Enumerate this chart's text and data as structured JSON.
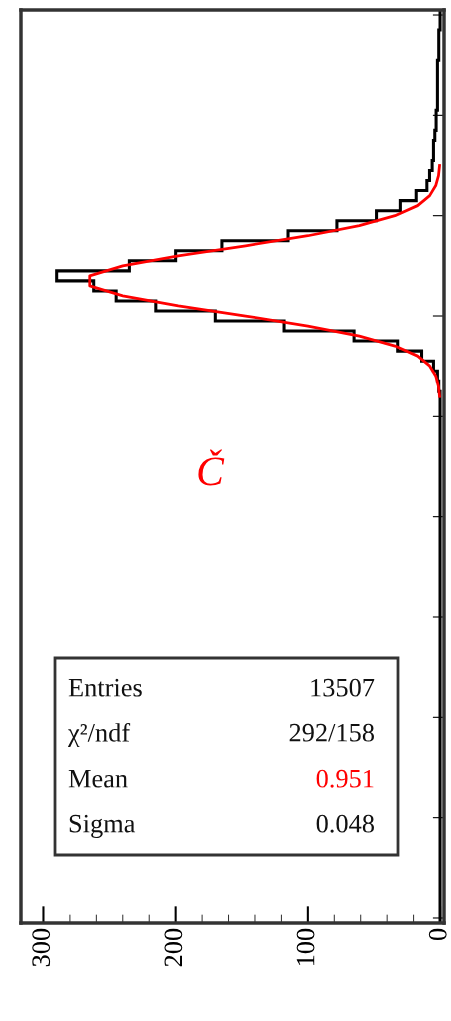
{
  "chart_data": {
    "type": "step",
    "orientation": "horizontal",
    "categories": [
      null,
      null,
      null,
      null,
      null,
      null,
      null,
      null,
      null,
      null,
      null,
      null,
      null,
      null,
      null,
      null,
      null,
      null,
      null,
      null,
      null,
      null,
      null,
      null,
      null,
      null,
      null,
      null,
      null,
      null,
      null,
      null,
      null,
      null,
      null,
      null,
      null,
      null,
      null,
      null,
      null,
      null,
      null,
      null,
      null,
      null,
      null,
      null,
      null,
      null,
      null,
      null,
      null,
      null,
      null,
      null,
      null,
      null,
      null,
      null,
      null,
      null,
      null,
      null,
      null,
      null,
      null,
      null,
      null,
      null,
      null,
      null,
      null,
      null,
      null,
      null,
      null,
      null,
      null,
      null,
      null,
      null,
      null,
      null,
      null,
      null,
      null,
      null,
      null,
      null,
      null
    ],
    "series": [
      {
        "color": "#000000",
        "values": [
          0,
          0,
          1,
          1,
          1,
          2,
          2,
          2,
          2,
          2,
          3,
          3,
          4,
          5,
          5,
          6,
          8,
          10,
          18,
          30,
          48,
          78,
          115,
          165,
          200,
          235,
          290,
          262,
          245,
          215,
          170,
          118,
          65,
          32,
          14,
          5,
          2,
          1,
          0,
          0,
          0,
          0,
          0,
          0,
          0,
          0,
          0,
          0,
          0,
          0,
          0,
          0,
          0,
          0,
          0,
          0,
          0,
          0,
          0,
          0,
          0,
          0,
          0,
          0,
          0,
          0,
          0,
          0,
          0,
          0,
          0,
          0,
          0,
          0,
          0,
          0,
          0,
          0,
          0,
          0,
          0,
          0,
          0,
          0,
          0,
          0,
          0,
          0,
          0,
          0,
          0
        ]
      },
      {
        "type": "line",
        "color": "#ff0000",
        "values": [
          null,
          null,
          null,
          null,
          null,
          null,
          null,
          null,
          null,
          null,
          null,
          null,
          null,
          null,
          null,
          0.4,
          1.2,
          3.3,
          7.9,
          17,
          34,
          61,
          100,
          147,
          198,
          240,
          265,
          265,
          240,
          198,
          147,
          100,
          61,
          34,
          17,
          7.9,
          3.3,
          1.2,
          0.4,
          null,
          null,
          null,
          null,
          null,
          null,
          null,
          null,
          null,
          null,
          null,
          null,
          null,
          null,
          null,
          null,
          null,
          null,
          null,
          null,
          null,
          null,
          null,
          null,
          null,
          null,
          null,
          null,
          null,
          null,
          null,
          null,
          null,
          null,
          null,
          null,
          null,
          null,
          null,
          null,
          null,
          null,
          null,
          null,
          null,
          null,
          null,
          null,
          null,
          null,
          null,
          null
        ]
      }
    ],
    "xlim": [
      317,
      -3
    ],
    "xticks": [
      300,
      200,
      100,
      0
    ],
    "tick_labels": "x",
    "annotations": [
      "Entries",
      "13507",
      "χ²/ndf",
      "292/158",
      "Mean",
      "0.951",
      "Sigma",
      "0.048",
      "Č"
    ]
  }
}
